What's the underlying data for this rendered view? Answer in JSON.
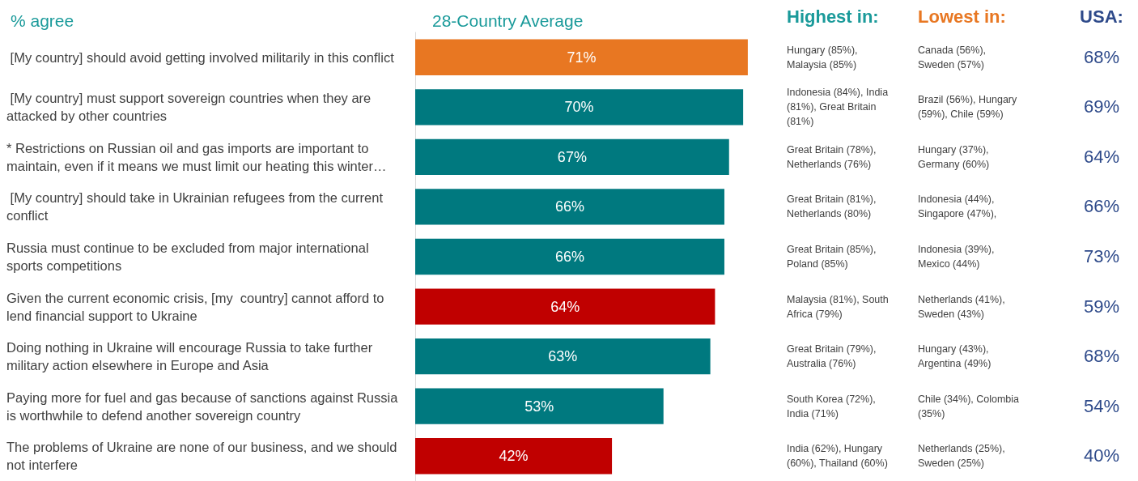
{
  "chart_data": [
    {
      "type": "bar",
      "orientation": "horizontal",
      "title": "28-Country Average",
      "ylabel": "% agree",
      "categories": [
        " [My country] should avoid getting involved militarily in this conflict",
        " [My country] must support sovereign countries when they are attacked by other countries",
        "* Restrictions on Russian oil and gas imports are important to maintain, even if it means we must limit our heating this winter…",
        " [My country] should take in Ukrainian refugees from the current conflict",
        "Russia must continue to be excluded from major international sports competitions",
        "Given the current economic crisis, [my  country] cannot afford to lend financial support to Ukraine",
        "Doing nothing in Ukraine will encourage Russia to take further military action elsewhere in Europe and Asia",
        "Paying more for fuel and gas because of sanctions against Russia is worthwhile to defend another sovereign country",
        "The problems of Ukraine are none of our business, and we should not interfere"
      ],
      "values": [
        71,
        70,
        67,
        66,
        66,
        64,
        63,
        53,
        42
      ],
      "value_labels": [
        "71%",
        "70%",
        "67%",
        "66%",
        "66%",
        "64%",
        "63%",
        "53%",
        "42%"
      ],
      "colors": [
        "#e87722",
        "#00797f",
        "#00797f",
        "#00797f",
        "#00797f",
        "#c00000",
        "#00797f",
        "#00797f",
        "#c00000"
      ],
      "grid": false
    },
    {
      "type": "other",
      "title": "Highest in:",
      "annotations": [
        "Hungary (85%), Malaysia (85%)",
        "Indonesia (84%), India (81%), Great Britain (81%)",
        "Great Britain (78%), Netherlands (76%)",
        "Great Britain (81%), Netherlands (80%)",
        "Great Britain (85%), Poland (85%)",
        "Malaysia (81%), South Africa (79%)",
        "Great Britain (79%), Australia (76%)",
        "South Korea (72%), India (71%)",
        "India (62%), Hungary (60%), Thailand (60%)"
      ]
    },
    {
      "type": "other",
      "title": "Lowest in:",
      "annotations": [
        "Canada (56%), Sweden (57%)",
        "Brazil (56%), Hungary (59%), Chile (59%)",
        "Hungary (37%), Germany (60%)",
        "Indonesia (44%), Singapore (47%),",
        "Indonesia (39%), Mexico (44%)",
        "Netherlands (41%), Sweden (43%)",
        "Hungary (43%), Argentina (49%)",
        "Chile (34%), Colombia (35%)",
        "Netherlands (25%), Sweden (25%)"
      ]
    },
    {
      "type": "other",
      "title": "USA:",
      "annotations": [
        "68%",
        "69%",
        "64%",
        "66%",
        "73%",
        "59%",
        "68%",
        "54%",
        "40%"
      ]
    }
  ]
}
